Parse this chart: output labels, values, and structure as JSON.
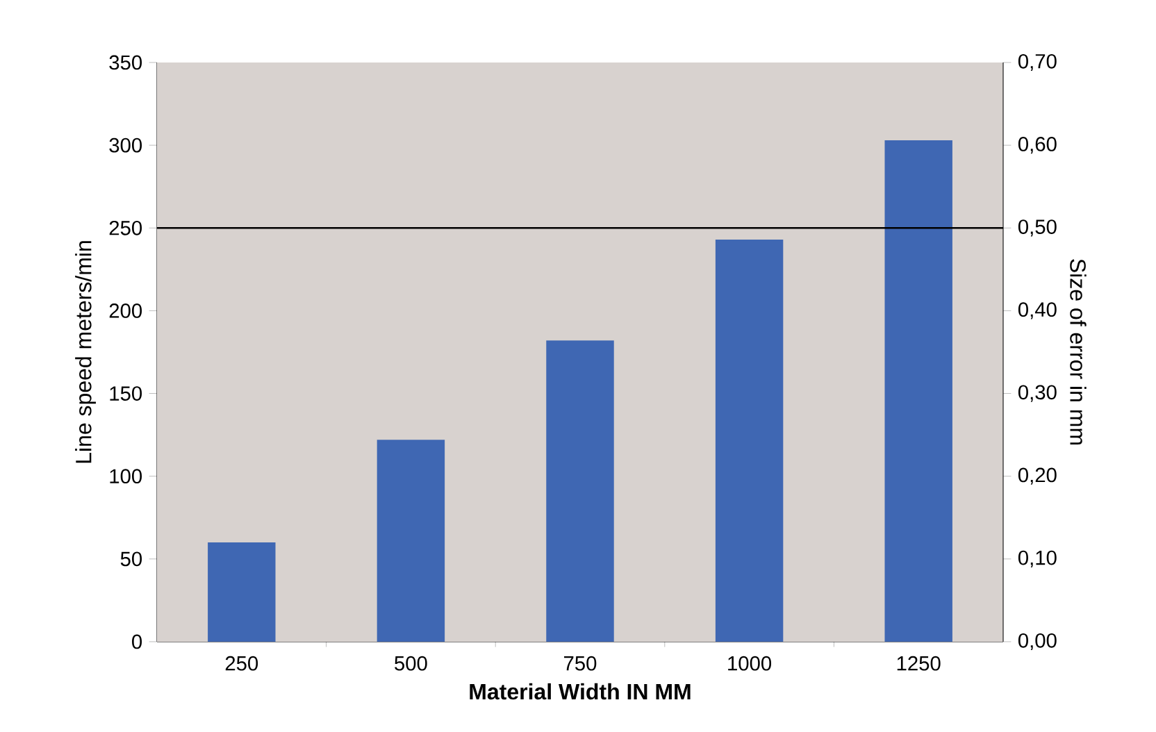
{
  "chart_data": {
    "type": "bar",
    "categories": [
      "250",
      "500",
      "750",
      "1000",
      "1250"
    ],
    "values": [
      60,
      122,
      182,
      243,
      303
    ],
    "color": "#3f67b3",
    "xlabel": "Material Width  IN MM",
    "ylabel": "Line speed meters/min",
    "y2label": "Size of error in mm",
    "ylim": [
      0,
      350
    ],
    "yticks": [
      0,
      50,
      100,
      150,
      200,
      250,
      300,
      350
    ],
    "y2lim": [
      0,
      0.7
    ],
    "y2ticks": [
      {
        "value": 0,
        "label": "0,00"
      },
      {
        "value": 0.1,
        "label": "0,10"
      },
      {
        "value": 0.2,
        "label": "0,20"
      },
      {
        "value": 0.3,
        "label": "0,30"
      },
      {
        "value": 0.4,
        "label": "0,40"
      },
      {
        "value": 0.5,
        "label": "0,50"
      },
      {
        "value": 0.6,
        "label": "0,60"
      },
      {
        "value": 0.7,
        "label": "0,70"
      }
    ],
    "ref_lines": [
      {
        "axis": "y",
        "value": 250,
        "color": "#000000"
      }
    ]
  }
}
